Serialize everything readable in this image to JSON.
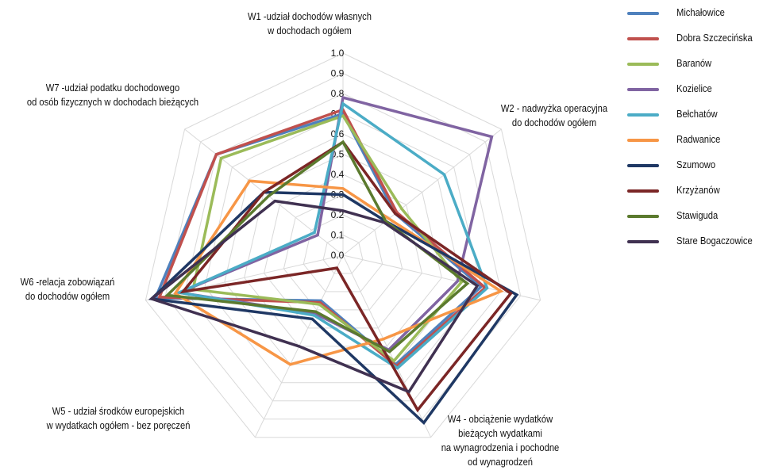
{
  "chart_data": {
    "type": "radar",
    "rlim": [
      0,
      1
    ],
    "rticks": [
      "1.0",
      "0.9",
      "0.8",
      "0.7",
      "0.6",
      "0.5",
      "0.4",
      "0.3",
      "0.2",
      "0.1",
      "0.0"
    ],
    "grid": true,
    "legend_position": "right",
    "axes": [
      "W1 -udział dochodów własnych\nw dochodach ogółem",
      "W2 - nadwyżka operacyjna\ndo dochodów ogółem",
      "W4 -  obciążenie wydatków\nbieżących wydatkami\nna wynagrodzenia i pochodne\nod wynagrodzeń",
      "W5 - udział środków europejskich\nw wydatkach ogółem - bez poręczeń",
      "W6 -relacja zobowiązań\ndo dochodów ogółem",
      "W7 -udział podatku dochodowego\nod osób fizycznych w dochodach bieżących"
    ],
    "series": [
      {
        "name": "Michałowice",
        "color": "#4F81BD",
        "values": [
          0.7,
          0.33,
          0.6,
          0.25,
          0.95,
          0.8
        ]
      },
      {
        "name": "Dobra Szczecińska",
        "color": "#C0504D",
        "values": [
          0.72,
          0.34,
          0.61,
          0.26,
          0.93,
          0.8
        ]
      },
      {
        "name": "Baranów",
        "color": "#9BBB59",
        "values": [
          0.69,
          0.37,
          0.58,
          0.27,
          0.76,
          0.77
        ]
      },
      {
        "name": "Kozielice",
        "color": "#8064A2",
        "values": [
          0.78,
          0.94,
          0.52,
          0.32,
          0.83,
          0.16
        ]
      },
      {
        "name": "Bełchatów",
        "color": "#4BACC6",
        "values": [
          0.75,
          0.64,
          0.62,
          0.33,
          0.83,
          0.18
        ]
      },
      {
        "name": "Radwanice",
        "color": "#F79646",
        "values": [
          0.33,
          0.29,
          0.46,
          0.6,
          0.85,
          0.59
        ]
      },
      {
        "name": "Szumowo",
        "color": "#1F3864",
        "values": [
          0.3,
          0.27,
          0.92,
          0.35,
          0.97,
          0.5
        ]
      },
      {
        "name": "Krzyżanów",
        "color": "#7B2626",
        "values": [
          0.56,
          0.33,
          0.85,
          0.07,
          0.81,
          0.5
        ]
      },
      {
        "name": "Stawiguda",
        "color": "#5B7A2E",
        "values": [
          0.56,
          0.27,
          0.53,
          0.31,
          0.89,
          0.47
        ]
      },
      {
        "name": "Stare Bogaczowice",
        "color": "#403151",
        "values": [
          0.22,
          0.26,
          0.75,
          0.5,
          0.97,
          0.43
        ]
      }
    ]
  }
}
